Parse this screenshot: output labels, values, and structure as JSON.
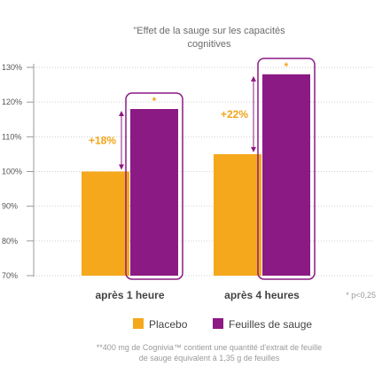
{
  "chart_data": {
    "type": "bar",
    "title_lines": [
      "\"Effet de la sauge sur les capacités",
      "cognitives"
    ],
    "y_ticks": [
      "130%",
      "120%",
      "110%",
      "100%",
      "90%",
      "80%",
      "70%"
    ],
    "ylim": [
      70,
      130
    ],
    "categories": [
      "après 1 heure",
      "après 4 heures"
    ],
    "series": [
      {
        "name": "Placebo",
        "color": "#f5a81c",
        "values": [
          100,
          105
        ]
      },
      {
        "name": "Feuilles de sauge",
        "color": "#8c1a84",
        "values": [
          118,
          128
        ]
      }
    ],
    "annotations": [
      {
        "category": "après 1 heure",
        "text": "+18%"
      },
      {
        "category": "après 4 heures",
        "text": "+22%"
      }
    ],
    "significance_marker": "*",
    "significance_note": "* p<0,25",
    "grid": true,
    "legend_position": "bottom",
    "footnote_lines": [
      "**400 mg de Cognivia™ contient une quantité d'extrait de feuille",
      "de sauge équivalent à 1,35 g de feuilles"
    ]
  }
}
